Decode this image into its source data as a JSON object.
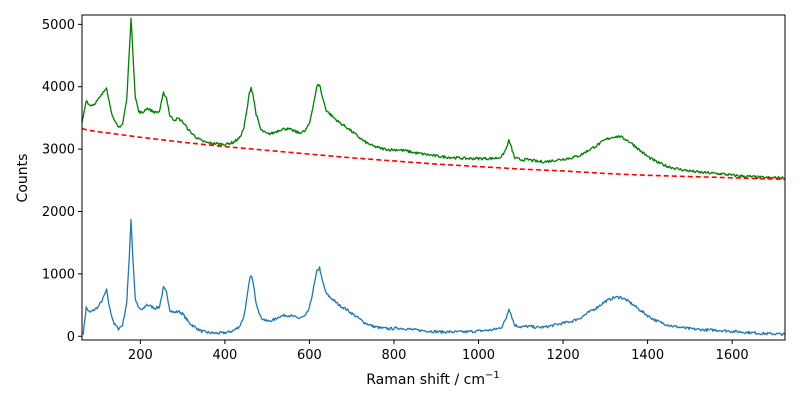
{
  "chart_data": {
    "type": "line",
    "xlabel": "Raman shift / cm",
    "xlabel_superscript": "−1",
    "ylabel": "Counts",
    "xlim": [
      62,
      1725
    ],
    "ylim": [
      -60,
      5150
    ],
    "x_ticks": [
      200,
      400,
      600,
      800,
      1000,
      1200,
      1400,
      1600
    ],
    "y_ticks": [
      0,
      1000,
      2000,
      3000,
      4000,
      5000
    ],
    "grid": false,
    "legend": "none",
    "series": [
      {
        "color": "#1f77b4",
        "style": "solid",
        "points": [
          [
            65,
            50
          ],
          [
            72,
            460
          ],
          [
            80,
            380
          ],
          [
            90,
            420
          ],
          [
            100,
            470
          ],
          [
            110,
            580
          ],
          [
            120,
            740
          ],
          [
            128,
            430
          ],
          [
            138,
            200
          ],
          [
            148,
            120
          ],
          [
            158,
            180
          ],
          [
            168,
            550
          ],
          [
            174,
            1300
          ],
          [
            178,
            1880
          ],
          [
            182,
            1300
          ],
          [
            188,
            600
          ],
          [
            196,
            450
          ],
          [
            205,
            420
          ],
          [
            215,
            510
          ],
          [
            225,
            480
          ],
          [
            235,
            450
          ],
          [
            245,
            470
          ],
          [
            255,
            780
          ],
          [
            262,
            700
          ],
          [
            270,
            420
          ],
          [
            280,
            380
          ],
          [
            290,
            400
          ],
          [
            300,
            360
          ],
          [
            315,
            220
          ],
          [
            330,
            140
          ],
          [
            345,
            80
          ],
          [
            360,
            60
          ],
          [
            375,
            50
          ],
          [
            390,
            50
          ],
          [
            405,
            60
          ],
          [
            420,
            90
          ],
          [
            435,
            160
          ],
          [
            445,
            320
          ],
          [
            452,
            600
          ],
          [
            458,
            880
          ],
          [
            462,
            990
          ],
          [
            466,
            880
          ],
          [
            474,
            540
          ],
          [
            485,
            300
          ],
          [
            500,
            240
          ],
          [
            515,
            260
          ],
          [
            530,
            320
          ],
          [
            545,
            340
          ],
          [
            560,
            320
          ],
          [
            575,
            290
          ],
          [
            590,
            320
          ],
          [
            600,
            450
          ],
          [
            610,
            780
          ],
          [
            618,
            1050
          ],
          [
            624,
            1100
          ],
          [
            630,
            900
          ],
          [
            640,
            680
          ],
          [
            655,
            590
          ],
          [
            670,
            500
          ],
          [
            690,
            420
          ],
          [
            710,
            320
          ],
          [
            730,
            220
          ],
          [
            750,
            160
          ],
          [
            770,
            130
          ],
          [
            790,
            120
          ],
          [
            810,
            130
          ],
          [
            830,
            120
          ],
          [
            850,
            100
          ],
          [
            870,
            90
          ],
          [
            890,
            80
          ],
          [
            910,
            70
          ],
          [
            930,
            70
          ],
          [
            950,
            70
          ],
          [
            970,
            70
          ],
          [
            990,
            80
          ],
          [
            1010,
            90
          ],
          [
            1030,
            100
          ],
          [
            1045,
            120
          ],
          [
            1055,
            150
          ],
          [
            1065,
            280
          ],
          [
            1072,
            450
          ],
          [
            1078,
            330
          ],
          [
            1085,
            180
          ],
          [
            1100,
            150
          ],
          [
            1120,
            160
          ],
          [
            1140,
            140
          ],
          [
            1160,
            150
          ],
          [
            1180,
            180
          ],
          [
            1200,
            210
          ],
          [
            1220,
            240
          ],
          [
            1240,
            290
          ],
          [
            1260,
            380
          ],
          [
            1280,
            460
          ],
          [
            1300,
            560
          ],
          [
            1320,
            620
          ],
          [
            1335,
            630
          ],
          [
            1350,
            580
          ],
          [
            1365,
            510
          ],
          [
            1380,
            430
          ],
          [
            1400,
            330
          ],
          [
            1420,
            250
          ],
          [
            1440,
            200
          ],
          [
            1460,
            160
          ],
          [
            1480,
            140
          ],
          [
            1500,
            120
          ],
          [
            1520,
            110
          ],
          [
            1540,
            100
          ],
          [
            1560,
            100
          ],
          [
            1580,
            90
          ],
          [
            1600,
            80
          ],
          [
            1620,
            70
          ],
          [
            1640,
            60
          ],
          [
            1660,
            50
          ],
          [
            1680,
            40
          ],
          [
            1700,
            40
          ],
          [
            1725,
            30
          ]
        ]
      },
      {
        "color": "#008000",
        "style": "solid",
        "points": [
          [
            62,
            3420
          ],
          [
            65,
            3520
          ],
          [
            72,
            3790
          ],
          [
            80,
            3700
          ],
          [
            90,
            3720
          ],
          [
            100,
            3790
          ],
          [
            110,
            3880
          ],
          [
            120,
            4000
          ],
          [
            128,
            3700
          ],
          [
            138,
            3450
          ],
          [
            148,
            3350
          ],
          [
            158,
            3400
          ],
          [
            168,
            3800
          ],
          [
            174,
            4600
          ],
          [
            178,
            5090
          ],
          [
            182,
            4600
          ],
          [
            188,
            3850
          ],
          [
            196,
            3600
          ],
          [
            205,
            3580
          ],
          [
            215,
            3660
          ],
          [
            225,
            3620
          ],
          [
            235,
            3590
          ],
          [
            245,
            3600
          ],
          [
            255,
            3900
          ],
          [
            262,
            3820
          ],
          [
            270,
            3530
          ],
          [
            280,
            3470
          ],
          [
            290,
            3490
          ],
          [
            300,
            3440
          ],
          [
            315,
            3300
          ],
          [
            330,
            3200
          ],
          [
            345,
            3130
          ],
          [
            360,
            3100
          ],
          [
            375,
            3090
          ],
          [
            390,
            3080
          ],
          [
            405,
            3080
          ],
          [
            420,
            3110
          ],
          [
            435,
            3180
          ],
          [
            445,
            3340
          ],
          [
            452,
            3620
          ],
          [
            458,
            3900
          ],
          [
            462,
            3990
          ],
          [
            466,
            3890
          ],
          [
            474,
            3560
          ],
          [
            485,
            3310
          ],
          [
            500,
            3240
          ],
          [
            515,
            3260
          ],
          [
            530,
            3310
          ],
          [
            545,
            3330
          ],
          [
            560,
            3300
          ],
          [
            575,
            3260
          ],
          [
            590,
            3290
          ],
          [
            600,
            3410
          ],
          [
            610,
            3740
          ],
          [
            618,
            4010
          ],
          [
            624,
            4040
          ],
          [
            630,
            3850
          ],
          [
            640,
            3620
          ],
          [
            655,
            3520
          ],
          [
            670,
            3430
          ],
          [
            690,
            3340
          ],
          [
            710,
            3230
          ],
          [
            730,
            3120
          ],
          [
            750,
            3050
          ],
          [
            770,
            3010
          ],
          [
            790,
            2990
          ],
          [
            810,
            2990
          ],
          [
            830,
            2970
          ],
          [
            850,
            2940
          ],
          [
            870,
            2920
          ],
          [
            890,
            2900
          ],
          [
            910,
            2880
          ],
          [
            930,
            2870
          ],
          [
            950,
            2860
          ],
          [
            970,
            2850
          ],
          [
            990,
            2850
          ],
          [
            1010,
            2850
          ],
          [
            1030,
            2850
          ],
          [
            1045,
            2860
          ],
          [
            1055,
            2880
          ],
          [
            1065,
            3000
          ],
          [
            1072,
            3140
          ],
          [
            1078,
            3020
          ],
          [
            1085,
            2860
          ],
          [
            1100,
            2830
          ],
          [
            1120,
            2830
          ],
          [
            1140,
            2800
          ],
          [
            1160,
            2800
          ],
          [
            1180,
            2820
          ],
          [
            1200,
            2840
          ],
          [
            1220,
            2860
          ],
          [
            1240,
            2900
          ],
          [
            1260,
            2980
          ],
          [
            1280,
            3060
          ],
          [
            1300,
            3150
          ],
          [
            1320,
            3200
          ],
          [
            1335,
            3200
          ],
          [
            1350,
            3150
          ],
          [
            1365,
            3080
          ],
          [
            1380,
            2990
          ],
          [
            1400,
            2880
          ],
          [
            1420,
            2800
          ],
          [
            1440,
            2740
          ],
          [
            1460,
            2700
          ],
          [
            1480,
            2670
          ],
          [
            1500,
            2650
          ],
          [
            1520,
            2630
          ],
          [
            1540,
            2620
          ],
          [
            1560,
            2610
          ],
          [
            1580,
            2600
          ],
          [
            1600,
            2580
          ],
          [
            1620,
            2570
          ],
          [
            1640,
            2560
          ],
          [
            1660,
            2550
          ],
          [
            1680,
            2540
          ],
          [
            1700,
            2540
          ],
          [
            1725,
            2540
          ]
        ]
      },
      {
        "color": "#ff0000",
        "style": "dashed",
        "points": [
          [
            62,
            3330
          ],
          [
            70,
            3315
          ],
          [
            80,
            3300
          ],
          [
            100,
            3280
          ],
          [
            150,
            3235
          ],
          [
            200,
            3190
          ],
          [
            300,
            3110
          ],
          [
            400,
            3040
          ],
          [
            500,
            2980
          ],
          [
            600,
            2920
          ],
          [
            700,
            2860
          ],
          [
            800,
            2810
          ],
          [
            900,
            2760
          ],
          [
            1000,
            2720
          ],
          [
            1100,
            2680
          ],
          [
            1200,
            2650
          ],
          [
            1300,
            2610
          ],
          [
            1400,
            2580
          ],
          [
            1500,
            2560
          ],
          [
            1600,
            2540
          ],
          [
            1700,
            2520
          ],
          [
            1725,
            2520
          ]
        ]
      }
    ]
  }
}
